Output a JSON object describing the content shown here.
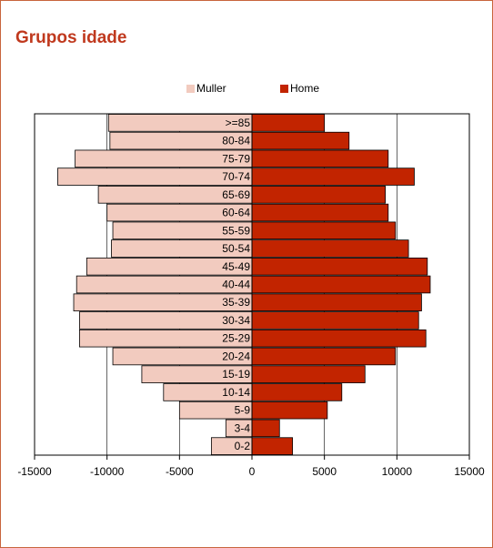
{
  "title": "Grupos idade",
  "colors": {
    "female": "#f2cbbf",
    "male": "#c22400",
    "border": "#c8643c",
    "title": "#c0391e"
  },
  "chart_data": {
    "type": "bar",
    "orientation": "horizontal-population-pyramid",
    "categories": [
      ">=85",
      "80-84",
      "75-79",
      "70-74",
      "65-69",
      "60-64",
      "55-59",
      "50-54",
      "45-49",
      "40-44",
      "35-39",
      "30-34",
      "25-29",
      "20-24",
      "15-19",
      "10-14",
      "5-9",
      "3-4",
      "0-2"
    ],
    "series": [
      {
        "name": "Muller",
        "values": [
          -9900,
          -9800,
          -12200,
          -13400,
          -10600,
          -10000,
          -9600,
          -9700,
          -11400,
          -12100,
          -12300,
          -11900,
          -11900,
          -9600,
          -7600,
          -6100,
          -5000,
          -1800,
          -2800
        ]
      },
      {
        "name": "Home",
        "values": [
          5000,
          6700,
          9400,
          11200,
          9200,
          9400,
          9900,
          10800,
          12100,
          12300,
          11700,
          11500,
          12000,
          9900,
          7800,
          6200,
          5200,
          1900,
          2800
        ]
      }
    ],
    "xlim": [
      -15000,
      15000
    ],
    "xticks": [
      "-15000",
      "-10000",
      "-5000",
      "0",
      "5000",
      "10000",
      "15000"
    ],
    "grid": true,
    "legend_position": "top-center"
  }
}
